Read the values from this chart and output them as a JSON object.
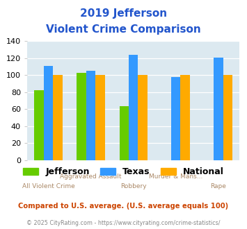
{
  "title_line1": "2019 Jefferson",
  "title_line2": "Violent Crime Comparison",
  "categories": [
    "All Violent Crime",
    "Aggravated Assault",
    "Robbery",
    "Murder & Mans...",
    "Rape"
  ],
  "series": {
    "Jefferson": [
      82,
      103,
      64,
      0,
      0
    ],
    "Texas": [
      111,
      105,
      124,
      98,
      121
    ],
    "National": [
      100,
      100,
      100,
      100,
      100
    ]
  },
  "colors": {
    "Jefferson": "#66cc00",
    "Texas": "#3399ff",
    "National": "#ffaa00"
  },
  "ylim": [
    0,
    140
  ],
  "yticks": [
    0,
    20,
    40,
    60,
    80,
    100,
    120,
    140
  ],
  "background_color": "#dce9f0",
  "title_color": "#2255cc",
  "xlabel_color": "#aa8866",
  "footnote1": "Compared to U.S. average. (U.S. average equals 100)",
  "footnote2": "© 2025 CityRating.com - https://www.cityrating.com/crime-statistics/",
  "footnote1_color": "#cc4400",
  "footnote2_color": "#888888"
}
